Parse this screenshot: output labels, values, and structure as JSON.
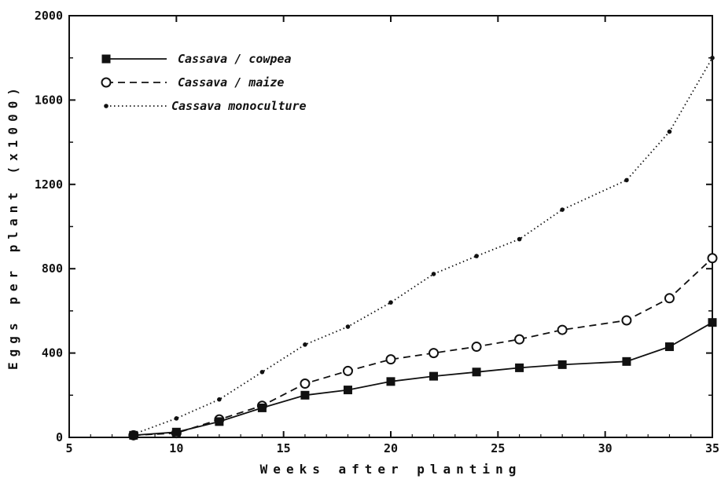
{
  "chart_data": {
    "type": "line",
    "xlabel": "Weeks after planting",
    "ylabel": "Eggs per plant (x1000)",
    "xlim": [
      5,
      35
    ],
    "ylim": [
      0,
      2000
    ],
    "xticks": [
      5,
      10,
      15,
      20,
      25,
      30,
      35
    ],
    "yticks": [
      0,
      400,
      800,
      1200,
      1600,
      2000
    ],
    "legend_position": "top-left",
    "grid": false,
    "series": [
      {
        "name": "Cassava / cowpea",
        "marker": "filled-square",
        "line_style": "solid",
        "x": [
          8,
          10,
          12,
          14,
          16,
          18,
          20,
          22,
          24,
          26,
          28,
          31,
          33,
          35
        ],
        "y": [
          10,
          25,
          75,
          140,
          200,
          225,
          265,
          290,
          310,
          330,
          345,
          360,
          430,
          545
        ]
      },
      {
        "name": "Cassava / maize",
        "marker": "open-circle",
        "line_style": "dashed",
        "x": [
          8,
          10,
          12,
          14,
          16,
          18,
          20,
          22,
          24,
          26,
          28,
          31,
          33,
          35
        ],
        "y": [
          10,
          20,
          85,
          150,
          255,
          315,
          370,
          400,
          430,
          465,
          510,
          555,
          660,
          850
        ]
      },
      {
        "name": "Cassava monoculture",
        "marker": "dot",
        "line_style": "dotted",
        "x": [
          8,
          10,
          12,
          14,
          16,
          18,
          20,
          22,
          24,
          26,
          28,
          31,
          33,
          35
        ],
        "y": [
          15,
          90,
          180,
          310,
          440,
          525,
          640,
          775,
          860,
          940,
          1080,
          1220,
          1450,
          1800
        ]
      }
    ]
  }
}
